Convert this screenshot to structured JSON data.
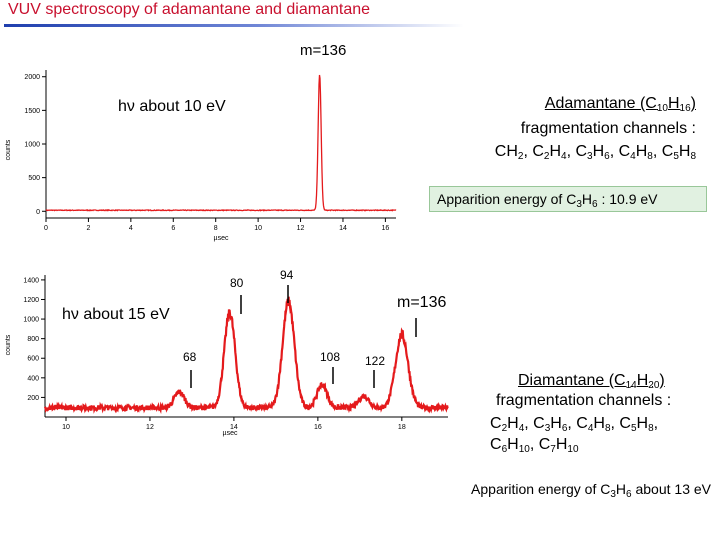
{
  "header": {
    "title": "VUV spectroscopy of adamantane and diamantane",
    "accent_color": "#c8102e",
    "rule_color": "#1f3fae"
  },
  "top_panel": {
    "m_label": "m=136",
    "hv_label": "hν about 10 eV",
    "adamantane": {
      "title_pre": "Adamantane (C",
      "title_sub1": "10",
      "title_mid": "H",
      "title_sub2": "16",
      "title_post": ")",
      "line2": "fragmentation channels :",
      "f1a": "CH",
      "f1b": "2",
      "f1c": ", C",
      "f2a": "2",
      "f2b": "H",
      "f2c": "4",
      "f2d": ", C",
      "f3a": "3",
      "f3b": "H",
      "f3c": "6",
      "f3d": ", C",
      "f4a": "4",
      "f4b": "H",
      "f4c": "8",
      "f4d": ", C",
      "f5a": "5",
      "f5b": "H",
      "f5c": "8"
    },
    "apparition": {
      "pre": "Apparition energy of C",
      "sub1": "3",
      "mid": "H",
      "sub2": "6",
      "post": " : 10.9 eV",
      "bg_color": "#e1f1e1"
    }
  },
  "bottom_panel": {
    "m_label": "m=136",
    "hv_label": "hν about 15 eV",
    "peak_labels": {
      "p68": "68",
      "p80": "80",
      "p94": "94",
      "p108": "108",
      "p122": "122"
    },
    "diamantane": {
      "title_pre": "Diamantane (C",
      "title_sub1": "14",
      "title_mid": "H",
      "title_sub2": "20",
      "title_post": ")",
      "line2": "fragmentation channels :",
      "a1": "C",
      "a2": "2",
      "a3": "H",
      "a4": "4",
      "a5": ", C",
      "a6": "3",
      "a7": "H",
      "a8": "6",
      "a9": ", C",
      "a10": "4",
      "a11": "H",
      "a12": "8",
      "a13": ", C",
      "a14": "5",
      "a15": "H",
      "a16": "8",
      "a17": ",",
      "b1": "C",
      "b2": "6",
      "b3": "H",
      "b4": "10",
      "b5": ",  C",
      "b6": "7",
      "b7": "H",
      "b8": "10"
    },
    "apparition": {
      "pre": "Apparition energy of C",
      "sub1": "3",
      "mid": "H",
      "sub2": "6",
      "post": " about 13 eV"
    }
  },
  "chart_data": [
    {
      "type": "line",
      "title": "",
      "xlabel": "µsec",
      "ylabel": "counts",
      "xlim": [
        0,
        16.5
      ],
      "ylim": [
        -100,
        2100
      ],
      "xticks": [
        0,
        2,
        4,
        6,
        8,
        10,
        12,
        14,
        16
      ],
      "yticks": [
        0,
        500,
        1000,
        1500,
        2000
      ],
      "color": "#e41a1c",
      "peaks": [
        {
          "x": 12.9,
          "height": 2050,
          "width": 0.07
        }
      ],
      "baseline": 15,
      "grid": false
    },
    {
      "type": "line",
      "title": "",
      "xlabel": "µsec",
      "ylabel": "counts",
      "xlim": [
        9.5,
        19.1
      ],
      "ylim": [
        0,
        1450
      ],
      "xticks": [
        10,
        12,
        14,
        16,
        18
      ],
      "yticks": [
        200,
        400,
        600,
        800,
        1000,
        1200,
        1400
      ],
      "color": "#e41a1c",
      "peaks": [
        {
          "x": 12.7,
          "height": 255,
          "width": 0.12
        },
        {
          "x": 13.9,
          "height": 1060,
          "width": 0.13
        },
        {
          "x": 15.3,
          "height": 1180,
          "width": 0.14
        },
        {
          "x": 16.1,
          "height": 330,
          "width": 0.12
        },
        {
          "x": 17.1,
          "height": 215,
          "width": 0.12
        },
        {
          "x": 18.0,
          "height": 840,
          "width": 0.15
        }
      ],
      "baseline": 95,
      "grid": false
    }
  ]
}
